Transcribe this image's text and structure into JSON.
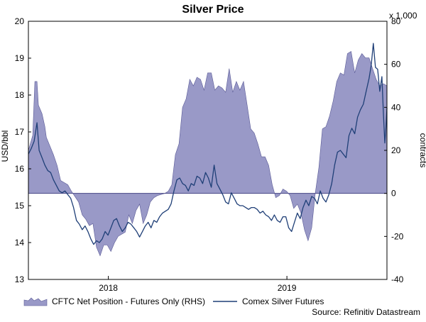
{
  "chart_data": {
    "type": "area+line",
    "title": "Silver Price",
    "ylabel_left": "USD/bbl",
    "ylabel_right": "contracts",
    "right_unit": "x 1,000",
    "source": "Source: Refinitiv Datastream",
    "left_ylim": [
      13,
      20
    ],
    "right_ylim": [
      -40,
      80
    ],
    "left_ticks": [
      "13",
      "14",
      "15",
      "16",
      "17",
      "18",
      "19",
      "20"
    ],
    "right_ticks": [
      "-40",
      "-20",
      "0",
      "20",
      "40",
      "60",
      "80"
    ],
    "x_ticks": [
      {
        "label": "2018",
        "t": 0.223
      },
      {
        "label": "2019",
        "t": 0.721
      }
    ],
    "legend": {
      "area_label": "CFTC Net Position - Futures Only (RHS)",
      "line_label": "Comex Silver Futures",
      "placement": "bottom"
    },
    "colors": {
      "area_fill": "#9999c7",
      "area_stroke": "#5a5a96",
      "line": "#1f3f77",
      "zero_line": "#4a4a88"
    },
    "series": [
      {
        "name": "CFTC Net Position - Futures Only (RHS)",
        "axis": "right",
        "points": [
          [
            0.0,
            20
          ],
          [
            0.012,
            27
          ],
          [
            0.018,
            52
          ],
          [
            0.024,
            52
          ],
          [
            0.028,
            41
          ],
          [
            0.038,
            37
          ],
          [
            0.046,
            31
          ],
          [
            0.05,
            26
          ],
          [
            0.06,
            22
          ],
          [
            0.07,
            18
          ],
          [
            0.08,
            13
          ],
          [
            0.09,
            6
          ],
          [
            0.1,
            5
          ],
          [
            0.11,
            4
          ],
          [
            0.12,
            1
          ],
          [
            0.14,
            -4
          ],
          [
            0.15,
            -10
          ],
          [
            0.16,
            -12
          ],
          [
            0.17,
            -15
          ],
          [
            0.18,
            -14
          ],
          [
            0.19,
            -25
          ],
          [
            0.2,
            -29
          ],
          [
            0.21,
            -24
          ],
          [
            0.22,
            -24
          ],
          [
            0.23,
            -27
          ],
          [
            0.24,
            -23
          ],
          [
            0.25,
            -20
          ],
          [
            0.26,
            -19
          ],
          [
            0.27,
            -18
          ],
          [
            0.28,
            -10
          ],
          [
            0.29,
            -14
          ],
          [
            0.3,
            -8
          ],
          [
            0.31,
            -5
          ],
          [
            0.32,
            -14
          ],
          [
            0.33,
            -10
          ],
          [
            0.34,
            -4
          ],
          [
            0.35,
            -2
          ],
          [
            0.36,
            -1
          ],
          [
            0.38,
            0
          ],
          [
            0.39,
            1
          ],
          [
            0.4,
            4
          ],
          [
            0.41,
            18
          ],
          [
            0.42,
            23
          ],
          [
            0.43,
            40
          ],
          [
            0.44,
            44
          ],
          [
            0.45,
            53
          ],
          [
            0.46,
            50
          ],
          [
            0.47,
            54
          ],
          [
            0.48,
            53
          ],
          [
            0.49,
            48
          ],
          [
            0.5,
            56
          ],
          [
            0.51,
            56
          ],
          [
            0.52,
            48
          ],
          [
            0.53,
            50
          ],
          [
            0.54,
            49
          ],
          [
            0.55,
            47
          ],
          [
            0.56,
            58
          ],
          [
            0.57,
            47
          ],
          [
            0.58,
            52
          ],
          [
            0.59,
            48
          ],
          [
            0.6,
            52
          ],
          [
            0.61,
            41
          ],
          [
            0.62,
            30
          ],
          [
            0.63,
            28
          ],
          [
            0.64,
            23
          ],
          [
            0.65,
            17
          ],
          [
            0.66,
            17
          ],
          [
            0.67,
            13
          ],
          [
            0.68,
            4
          ],
          [
            0.69,
            -2
          ],
          [
            0.7,
            -1
          ],
          [
            0.71,
            2
          ],
          [
            0.72,
            1
          ],
          [
            0.73,
            -1
          ],
          [
            0.74,
            -7
          ],
          [
            0.75,
            -5
          ],
          [
            0.76,
            -9
          ],
          [
            0.77,
            -17
          ],
          [
            0.78,
            -22
          ],
          [
            0.79,
            -16
          ],
          [
            0.8,
            0
          ],
          [
            0.81,
            12
          ],
          [
            0.82,
            30
          ],
          [
            0.83,
            31
          ],
          [
            0.84,
            36
          ],
          [
            0.85,
            43
          ],
          [
            0.86,
            52
          ],
          [
            0.87,
            56
          ],
          [
            0.88,
            55
          ],
          [
            0.89,
            65
          ],
          [
            0.9,
            66
          ],
          [
            0.91,
            56
          ],
          [
            0.92,
            62
          ],
          [
            0.93,
            65
          ],
          [
            0.94,
            63
          ],
          [
            0.95,
            63
          ],
          [
            0.96,
            58
          ],
          [
            0.97,
            53
          ],
          [
            0.98,
            50
          ],
          [
            0.99,
            51
          ],
          [
            1.0,
            50
          ]
        ]
      },
      {
        "name": "Comex Silver Futures",
        "axis": "left",
        "points": [
          [
            0.0,
            16.4
          ],
          [
            0.008,
            16.55
          ],
          [
            0.016,
            16.75
          ],
          [
            0.024,
            17.25
          ],
          [
            0.03,
            16.5
          ],
          [
            0.038,
            16.3
          ],
          [
            0.046,
            16.1
          ],
          [
            0.054,
            15.95
          ],
          [
            0.062,
            15.9
          ],
          [
            0.07,
            15.7
          ],
          [
            0.078,
            15.55
          ],
          [
            0.086,
            15.4
          ],
          [
            0.094,
            15.35
          ],
          [
            0.102,
            15.4
          ],
          [
            0.11,
            15.3
          ],
          [
            0.118,
            15.2
          ],
          [
            0.126,
            14.95
          ],
          [
            0.134,
            14.6
          ],
          [
            0.142,
            14.5
          ],
          [
            0.15,
            14.35
          ],
          [
            0.158,
            14.45
          ],
          [
            0.166,
            14.3
          ],
          [
            0.174,
            14.1
          ],
          [
            0.182,
            13.95
          ],
          [
            0.19,
            14.05
          ],
          [
            0.198,
            14.0
          ],
          [
            0.206,
            14.1
          ],
          [
            0.214,
            14.3
          ],
          [
            0.222,
            14.2
          ],
          [
            0.23,
            14.4
          ],
          [
            0.238,
            14.6
          ],
          [
            0.246,
            14.65
          ],
          [
            0.254,
            14.45
          ],
          [
            0.262,
            14.3
          ],
          [
            0.27,
            14.4
          ],
          [
            0.278,
            14.55
          ],
          [
            0.286,
            14.5
          ],
          [
            0.294,
            14.4
          ],
          [
            0.302,
            14.3
          ],
          [
            0.31,
            14.15
          ],
          [
            0.318,
            14.3
          ],
          [
            0.326,
            14.45
          ],
          [
            0.334,
            14.55
          ],
          [
            0.342,
            14.4
          ],
          [
            0.35,
            14.6
          ],
          [
            0.358,
            14.55
          ],
          [
            0.366,
            14.7
          ],
          [
            0.374,
            14.8
          ],
          [
            0.382,
            14.85
          ],
          [
            0.39,
            14.9
          ],
          [
            0.398,
            15.05
          ],
          [
            0.406,
            15.4
          ],
          [
            0.414,
            15.7
          ],
          [
            0.422,
            15.75
          ],
          [
            0.43,
            15.6
          ],
          [
            0.438,
            15.55
          ],
          [
            0.446,
            15.4
          ],
          [
            0.454,
            15.6
          ],
          [
            0.462,
            15.55
          ],
          [
            0.47,
            15.8
          ],
          [
            0.478,
            15.75
          ],
          [
            0.486,
            15.6
          ],
          [
            0.494,
            15.9
          ],
          [
            0.502,
            15.75
          ],
          [
            0.51,
            15.5
          ],
          [
            0.518,
            16.1
          ],
          [
            0.526,
            15.6
          ],
          [
            0.534,
            15.45
          ],
          [
            0.542,
            15.3
          ],
          [
            0.55,
            15.1
          ],
          [
            0.558,
            15.05
          ],
          [
            0.566,
            15.35
          ],
          [
            0.574,
            15.2
          ],
          [
            0.582,
            15.05
          ],
          [
            0.59,
            15.0
          ],
          [
            0.598,
            15.0
          ],
          [
            0.606,
            14.95
          ],
          [
            0.614,
            14.9
          ],
          [
            0.622,
            14.95
          ],
          [
            0.63,
            14.95
          ],
          [
            0.638,
            14.9
          ],
          [
            0.646,
            14.8
          ],
          [
            0.654,
            14.85
          ],
          [
            0.662,
            14.75
          ],
          [
            0.67,
            14.7
          ],
          [
            0.678,
            14.6
          ],
          [
            0.686,
            14.75
          ],
          [
            0.694,
            14.6
          ],
          [
            0.702,
            14.55
          ],
          [
            0.71,
            14.7
          ],
          [
            0.718,
            14.7
          ],
          [
            0.726,
            14.4
          ],
          [
            0.734,
            14.3
          ],
          [
            0.742,
            14.55
          ],
          [
            0.75,
            14.8
          ],
          [
            0.758,
            14.65
          ],
          [
            0.766,
            14.95
          ],
          [
            0.774,
            15.15
          ],
          [
            0.782,
            15.0
          ],
          [
            0.79,
            15.25
          ],
          [
            0.798,
            15.2
          ],
          [
            0.806,
            15.05
          ],
          [
            0.814,
            15.4
          ],
          [
            0.822,
            15.2
          ],
          [
            0.83,
            15.1
          ],
          [
            0.838,
            15.3
          ],
          [
            0.846,
            15.6
          ],
          [
            0.854,
            16.1
          ],
          [
            0.862,
            16.45
          ],
          [
            0.87,
            16.5
          ],
          [
            0.878,
            16.4
          ],
          [
            0.886,
            16.3
          ],
          [
            0.894,
            16.9
          ],
          [
            0.902,
            17.1
          ],
          [
            0.91,
            16.95
          ],
          [
            0.918,
            17.4
          ],
          [
            0.926,
            17.6
          ],
          [
            0.934,
            17.75
          ],
          [
            0.942,
            18.1
          ],
          [
            0.95,
            18.45
          ],
          [
            0.956,
            18.8
          ],
          [
            0.962,
            19.4
          ],
          [
            0.968,
            18.75
          ],
          [
            0.974,
            18.7
          ],
          [
            0.98,
            18.1
          ],
          [
            0.986,
            18.5
          ],
          [
            0.99,
            17.5
          ],
          [
            0.994,
            16.7
          ],
          [
            0.997,
            17.1
          ],
          [
            1.0,
            17.65
          ]
        ]
      }
    ]
  }
}
